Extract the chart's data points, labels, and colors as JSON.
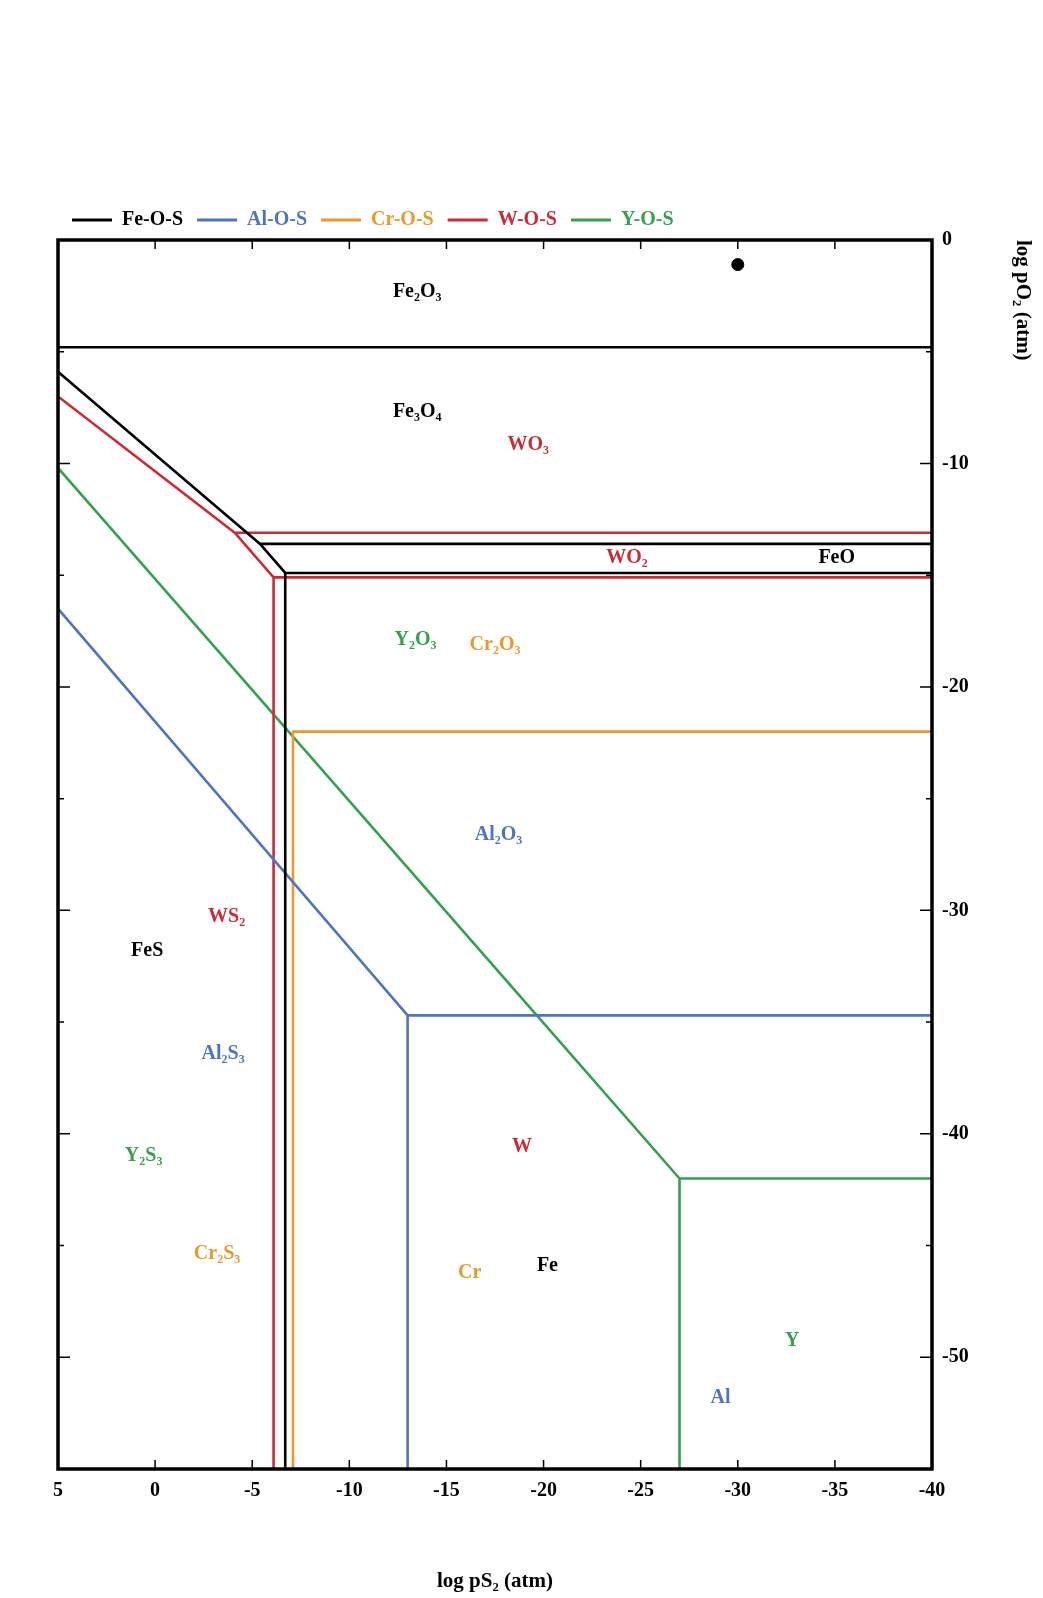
{
  "chart_data": {
    "type": "line",
    "xlabel": "log pS₂ (atm)",
    "ylabel": "log pO₂ (atm)",
    "xlim": [
      5,
      -40
    ],
    "xticks": [
      5,
      0,
      -5,
      -10,
      -15,
      -20,
      -25,
      -30,
      -35,
      -40
    ],
    "ylim": [
      -55,
      0
    ],
    "yticks": [
      0,
      {
        "value": -5,
        "label": null
      },
      -10,
      {
        "value": -15,
        "label": null
      },
      -20,
      {
        "value": -25,
        "label": null
      },
      -30,
      {
        "value": -35,
        "label": null
      },
      -40,
      {
        "value": -45,
        "label": null
      },
      -50
    ],
    "legend": "top left",
    "marker": "none",
    "series": [
      {
        "name": "Fe-O-S",
        "color": "#000000",
        "x": [
          5,
          -5.4,
          -6.7,
          -6.7
        ],
        "values": [
          -5.9,
          -13.6,
          -14.9,
          -55
        ]
      },
      {
        "color": "#000000",
        "x": [
          5,
          -40
        ],
        "values": [
          -4.8,
          -4.8
        ]
      },
      {
        "color": "#000000",
        "x": [
          -5.4,
          -40
        ],
        "values": [
          -13.6,
          -13.6
        ]
      },
      {
        "color": "#000000",
        "x": [
          -6.7,
          -40
        ],
        "values": [
          -14.9,
          -14.9
        ]
      },
      {
        "name": "Al-O-S",
        "color": "#4f74c0",
        "x": [
          5,
          -13,
          -13,
          null,
          -13,
          -40
        ],
        "values": [
          -16.5,
          -34.7,
          -55,
          null,
          -34.7,
          -34.7
        ]
      },
      {
        "name": "Cr-O-S",
        "color": "#e89a2c",
        "x": [
          -7.1,
          -7.1,
          -40
        ],
        "values": [
          -55,
          -22,
          -22
        ]
      },
      {
        "name": "W-O-S",
        "color": "#cc2b36",
        "x": [
          5,
          -4.1,
          -6.1,
          -6.1,
          null,
          -4.1,
          -40,
          null,
          -6.1,
          -40
        ],
        "values": [
          -7.0,
          -13.1,
          -15.1,
          -55,
          null,
          -13.1,
          -13.1,
          null,
          -15.1,
          -15.1
        ]
      },
      {
        "name": "Y-O-S",
        "color": "#35a04e",
        "x": [
          5,
          -27,
          -27,
          null,
          -27,
          -40
        ],
        "values": [
          -10.2,
          -42,
          -55,
          null,
          -42,
          -42
        ]
      },
      {
        "type": "scatter",
        "color": "#000000",
        "marker": "circle",
        "x": [
          -30
        ],
        "values": [
          -1.1
        ]
      }
    ],
    "annotations": [
      "Fe₂O₃",
      "Fe₃O₄",
      "WO₃",
      "WO₂",
      "FeO",
      "Y₂O₃",
      "Cr₂O₃",
      "Al₂O₃",
      "FeS",
      "WS₂",
      "Al₂S₃",
      "Y₂S₃",
      "W",
      "Cr₂S₃",
      "Cr",
      "Fe",
      "Y",
      "Al"
    ]
  }
}
